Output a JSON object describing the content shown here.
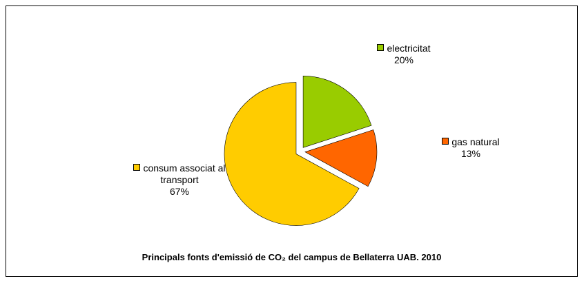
{
  "chart_data": {
    "type": "pie",
    "title": "Principals fonts d'emissió de CO₂ del campus de Bellaterra UAB. 2010",
    "categories": [
      "electricitat",
      "gas natural",
      "consum associat al transport"
    ],
    "values": [
      20,
      13,
      67
    ],
    "value_labels": [
      "20%",
      "13%",
      "67%"
    ],
    "colors": [
      "#99cc00",
      "#ff6600",
      "#ffcc00"
    ],
    "start_angle": 0,
    "exploded": true
  }
}
